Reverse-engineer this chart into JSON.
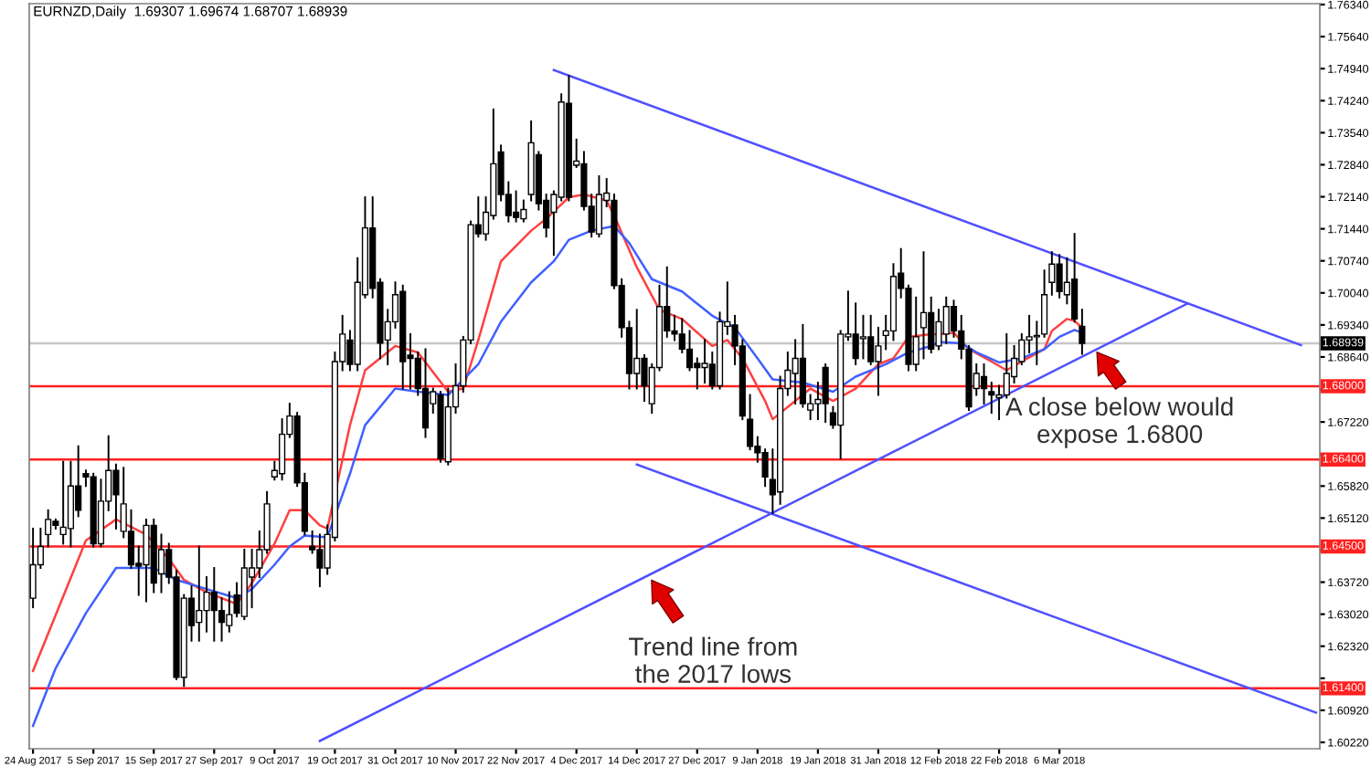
{
  "chart_data": {
    "type": "candlestick",
    "title": "EURNZD,Daily  1.69307 1.69674 1.68707 1.68939",
    "categories": [
      "24 Aug 2017",
      null,
      null,
      null,
      null,
      null,
      null,
      null,
      "5 Sep 2017",
      null,
      null,
      null,
      null,
      null,
      null,
      null,
      "15 Sep 2017",
      null,
      null,
      null,
      null,
      null,
      null,
      null,
      "27 Sep 2017",
      null,
      null,
      null,
      null,
      null,
      null,
      null,
      "9 Oct 2017",
      null,
      null,
      null,
      null,
      null,
      null,
      null,
      "19 Oct 2017",
      null,
      null,
      null,
      null,
      null,
      null,
      null,
      "31 Oct 2017",
      null,
      null,
      null,
      null,
      null,
      null,
      null,
      "10 Nov 2017",
      null,
      null,
      null,
      null,
      null,
      null,
      null,
      "22 Nov 2017",
      null,
      null,
      null,
      null,
      null,
      null,
      null,
      "4 Dec 2017",
      null,
      null,
      null,
      null,
      null,
      null,
      null,
      "14 Dec 2017",
      null,
      null,
      null,
      null,
      null,
      null,
      null,
      "27 Dec 2017",
      null,
      null,
      null,
      null,
      null,
      null,
      null,
      "9 Jan 2018",
      null,
      null,
      null,
      null,
      null,
      null,
      null,
      "19 Jan 2018",
      null,
      null,
      null,
      null,
      null,
      null,
      null,
      "31 Jan 2018",
      null,
      null,
      null,
      null,
      null,
      null,
      null,
      "12 Feb 2018",
      null,
      null,
      null,
      null,
      null,
      null,
      null,
      "22 Feb 2018",
      null,
      null,
      null,
      null,
      null,
      null,
      null,
      "6 Mar 2018",
      null,
      null,
      null,
      null,
      null,
      null,
      null,
      null,
      null,
      null,
      null,
      null,
      null,
      null,
      null,
      null,
      null,
      null,
      null,
      null,
      null,
      null,
      null,
      null,
      null,
      null,
      null,
      null,
      null,
      null,
      null,
      null,
      null,
      null
    ],
    "ohlc": [
      [
        1.6337,
        1.6489,
        1.6317,
        1.641
      ],
      [
        1.641,
        1.6489,
        1.6403,
        1.645
      ],
      [
        1.6476,
        1.6529,
        1.645,
        1.6509
      ],
      [
        1.6505,
        1.6509,
        1.6489,
        1.6496
      ],
      [
        1.6476,
        1.6635,
        1.6456,
        1.6492
      ],
      [
        1.6489,
        1.6635,
        1.645,
        1.6582
      ],
      [
        1.6582,
        1.6669,
        1.6516,
        1.6529
      ],
      [
        1.6609,
        1.6616,
        1.6582,
        1.6602
      ],
      [
        1.6602,
        1.6609,
        1.645,
        1.6456
      ],
      [
        1.6456,
        1.6596,
        1.645,
        1.6549
      ],
      [
        1.6549,
        1.6691,
        1.6529,
        1.6616
      ],
      [
        1.6616,
        1.6629,
        1.6489,
        1.6563
      ],
      [
        1.6483,
        1.6622,
        1.647,
        1.6543
      ],
      [
        1.6483,
        1.6529,
        1.6403,
        1.641
      ],
      [
        1.6413,
        1.645,
        1.6344,
        1.6407
      ],
      [
        1.641,
        1.6509,
        1.633,
        1.6496
      ],
      [
        1.6496,
        1.6509,
        1.635,
        1.637
      ],
      [
        1.639,
        1.6476,
        1.635,
        1.6443
      ],
      [
        1.6443,
        1.6456,
        1.637,
        1.6383
      ],
      [
        1.6383,
        1.6397,
        1.616,
        1.6164
      ],
      [
        1.6164,
        1.6344,
        1.6145,
        1.6337
      ],
      [
        1.6337,
        1.6363,
        1.6244,
        1.6277
      ],
      [
        1.6284,
        1.645,
        1.6244,
        1.631
      ],
      [
        1.631,
        1.6383,
        1.6264,
        1.635
      ],
      [
        1.635,
        1.6403,
        1.6244,
        1.631
      ],
      [
        1.631,
        1.6337,
        1.6244,
        1.6284
      ],
      [
        1.6277,
        1.635,
        1.6264,
        1.6301
      ],
      [
        1.6344,
        1.637,
        1.6297,
        1.6304
      ],
      [
        1.6297,
        1.6443,
        1.6291,
        1.6403
      ],
      [
        1.6383,
        1.6443,
        1.6317,
        1.6403
      ],
      [
        1.6403,
        1.6483,
        1.6383,
        1.6443
      ],
      [
        1.6443,
        1.6569,
        1.6436,
        1.6543
      ],
      [
        1.6602,
        1.6635,
        1.6596,
        1.6616
      ],
      [
        1.6609,
        1.6728,
        1.6596,
        1.6695
      ],
      [
        1.6695,
        1.6762,
        1.6689,
        1.6735
      ],
      [
        1.6735,
        1.6742,
        1.6582,
        1.6589
      ],
      [
        1.6589,
        1.6609,
        1.6476,
        1.6483
      ],
      [
        1.645,
        1.6483,
        1.6436,
        1.6443
      ],
      [
        1.6443,
        1.6476,
        1.6363,
        1.6403
      ],
      [
        1.6403,
        1.6496,
        1.639,
        1.6476
      ],
      [
        1.647,
        1.6874,
        1.6463,
        1.6854
      ],
      [
        1.6854,
        1.6954,
        1.6835,
        1.6914
      ],
      [
        1.6901,
        1.6921,
        1.6835,
        1.6848
      ],
      [
        1.6848,
        1.708,
        1.6835,
        1.7027
      ],
      [
        1.7,
        1.7213,
        1.6994,
        1.7146
      ],
      [
        1.7146,
        1.7213,
        1.6994,
        1.7014
      ],
      [
        1.7027,
        1.7034,
        1.6861,
        1.6894
      ],
      [
        1.6901,
        1.6967,
        1.6848,
        1.6941
      ],
      [
        1.6941,
        1.7027,
        1.6928,
        1.7
      ],
      [
        1.7007,
        1.702,
        1.6795,
        1.6854
      ],
      [
        1.6868,
        1.6914,
        1.6795,
        1.6861
      ],
      [
        1.6861,
        1.6874,
        1.6781,
        1.6795
      ],
      [
        1.6795,
        1.6881,
        1.6689,
        1.6709
      ],
      [
        1.6762,
        1.6795,
        1.6742,
        1.6788
      ],
      [
        1.6781,
        1.6788,
        1.6635,
        1.6642
      ],
      [
        1.6635,
        1.6795,
        1.6629,
        1.6755
      ],
      [
        1.6755,
        1.6848,
        1.6742,
        1.6801
      ],
      [
        1.6801,
        1.6908,
        1.6788,
        1.6901
      ],
      [
        1.6901,
        1.716,
        1.6894,
        1.7153
      ],
      [
        1.7153,
        1.7213,
        1.7127,
        1.7133
      ],
      [
        1.7133,
        1.7213,
        1.712,
        1.718
      ],
      [
        1.7173,
        1.7405,
        1.7166,
        1.7286
      ],
      [
        1.7312,
        1.7326,
        1.7206,
        1.7219
      ],
      [
        1.7219,
        1.7246,
        1.716,
        1.7173
      ],
      [
        1.718,
        1.7226,
        1.716,
        1.7169
      ],
      [
        1.7166,
        1.7206,
        1.716,
        1.7186
      ],
      [
        1.7219,
        1.7379,
        1.7206,
        1.7332
      ],
      [
        1.7306,
        1.7312,
        1.7186,
        1.7199
      ],
      [
        1.7206,
        1.7219,
        1.7127,
        1.7146
      ],
      [
        1.718,
        1.7226,
        1.7087,
        1.7219
      ],
      [
        1.7213,
        1.7438,
        1.7206,
        1.7421
      ],
      [
        1.7418,
        1.7478,
        1.7206,
        1.7213
      ],
      [
        1.7283,
        1.7339,
        1.7279,
        1.7292
      ],
      [
        1.7286,
        1.7312,
        1.7186,
        1.7193
      ],
      [
        1.7193,
        1.7219,
        1.7127,
        1.7137
      ],
      [
        1.7133,
        1.7259,
        1.7127,
        1.7219
      ],
      [
        1.7206,
        1.7253,
        1.7193,
        1.7222
      ],
      [
        1.7206,
        1.7219,
        1.7014,
        1.702
      ],
      [
        1.702,
        1.7034,
        1.6908,
        1.6928
      ],
      [
        1.6928,
        1.6941,
        1.6795,
        1.6828
      ],
      [
        1.6828,
        1.6967,
        1.6795,
        1.6861
      ],
      [
        1.6861,
        1.6868,
        1.6768,
        1.6801
      ],
      [
        1.6762,
        1.6848,
        1.6742,
        1.6841
      ],
      [
        1.6841,
        1.702,
        1.6835,
        1.6974
      ],
      [
        1.6974,
        1.706,
        1.6908,
        1.6921
      ],
      [
        1.6921,
        1.6954,
        1.6901,
        1.6914
      ],
      [
        1.6914,
        1.6947,
        1.6874,
        1.6881
      ],
      [
        1.6881,
        1.6921,
        1.6835,
        1.6841
      ],
      [
        1.685,
        1.6861,
        1.6795,
        1.6841
      ],
      [
        1.6841,
        1.6901,
        1.6808,
        1.685
      ],
      [
        1.6848,
        1.6874,
        1.6795,
        1.6801
      ],
      [
        1.6801,
        1.6961,
        1.6795,
        1.6941
      ],
      [
        1.6931,
        1.7027,
        1.6914,
        1.6941
      ],
      [
        1.6934,
        1.6954,
        1.6848,
        1.6888
      ],
      [
        1.6888,
        1.6901,
        1.6728,
        1.6735
      ],
      [
        1.6728,
        1.6781,
        1.6662,
        1.6669
      ],
      [
        1.6669,
        1.6689,
        1.6635,
        1.6655
      ],
      [
        1.6655,
        1.6662,
        1.6582,
        1.6602
      ],
      [
        1.6596,
        1.6662,
        1.6523,
        1.6563
      ],
      [
        1.6569,
        1.6821,
        1.6543,
        1.6795
      ],
      [
        1.6795,
        1.6874,
        1.6781,
        1.6835
      ],
      [
        1.6828,
        1.6901,
        1.6762,
        1.6861
      ],
      [
        1.6861,
        1.6934,
        1.6755,
        1.6762
      ],
      [
        1.6748,
        1.6781,
        1.6728,
        1.6762
      ],
      [
        1.6762,
        1.6808,
        1.6728,
        1.6771
      ],
      [
        1.6841,
        1.6848,
        1.6722,
        1.6762
      ],
      [
        1.6742,
        1.6755,
        1.6709,
        1.6715
      ],
      [
        1.6715,
        1.6921,
        1.6642,
        1.6914
      ],
      [
        1.6908,
        1.7007,
        1.6901,
        1.6914
      ],
      [
        1.6914,
        1.6981,
        1.6848,
        1.6861
      ],
      [
        1.6904,
        1.6954,
        1.6861,
        1.6908
      ],
      [
        1.6908,
        1.6954,
        1.6848,
        1.6854
      ],
      [
        1.6854,
        1.6928,
        1.6781,
        1.6888
      ],
      [
        1.6911,
        1.6954,
        1.6881,
        1.6921
      ],
      [
        1.6921,
        1.7067,
        1.6901,
        1.704
      ],
      [
        1.7047,
        1.71,
        1.6994,
        1.7014
      ],
      [
        1.7014,
        1.702,
        1.6835,
        1.6848
      ],
      [
        1.6848,
        1.6994,
        1.6835,
        1.6908
      ],
      [
        1.6928,
        1.7093,
        1.6861,
        1.6961
      ],
      [
        1.6961,
        1.6994,
        1.6874,
        1.6881
      ],
      [
        1.6888,
        1.6967,
        1.6881,
        1.6941
      ],
      [
        1.6914,
        1.6994,
        1.6894,
        1.6974
      ],
      [
        1.6974,
        1.6987,
        1.6908,
        1.6921
      ],
      [
        1.6921,
        1.6954,
        1.6861,
        1.6881
      ],
      [
        1.6881,
        1.6888,
        1.6748,
        1.6755
      ],
      [
        1.6795,
        1.6848,
        1.6781,
        1.6828
      ],
      [
        1.6821,
        1.6848,
        1.6762,
        1.6795
      ],
      [
        1.6788,
        1.6808,
        1.6742,
        1.6781
      ],
      [
        1.6775,
        1.6801,
        1.6728,
        1.6781
      ],
      [
        1.6781,
        1.6914,
        1.6775,
        1.6828
      ],
      [
        1.6821,
        1.6888,
        1.6808,
        1.6861
      ],
      [
        1.6854,
        1.6914,
        1.6848,
        1.6901
      ],
      [
        1.6901,
        1.6954,
        1.6874,
        1.6908
      ],
      [
        1.6908,
        1.6941,
        1.6848,
        1.6911
      ],
      [
        1.6914,
        1.7053,
        1.6908,
        1.7
      ],
      [
        1.7027,
        1.7093,
        1.7,
        1.7067
      ],
      [
        1.7067,
        1.7087,
        1.6994,
        1.7007
      ],
      [
        1.7,
        1.708,
        1.6981,
        1.7027
      ],
      [
        1.7034,
        1.7133,
        1.6941,
        1.6947
      ],
      [
        1.69307,
        1.69674,
        1.68707,
        1.68939
      ],
      null,
      null,
      null,
      null,
      null,
      null,
      null,
      null,
      null,
      null,
      null,
      null,
      null,
      null,
      null,
      null,
      null,
      null,
      null,
      null,
      null,
      null,
      null,
      null,
      null,
      null,
      null,
      null,
      null,
      null,
      null
    ],
    "series": [
      {
        "type": "line",
        "color": "#ff4040",
        "values": [
          1.6178,
          null,
          null,
          null,
          null,
          null,
          null,
          1.6463,
          null,
          null,
          null,
          1.6509,
          null,
          null,
          null,
          1.6476,
          null,
          null,
          1.6423,
          null,
          1.6377,
          null,
          null,
          1.635,
          null,
          null,
          null,
          1.6324,
          null,
          1.637,
          null,
          null,
          1.6456,
          null,
          1.6529,
          null,
          1.6529,
          null,
          1.6496,
          1.6489,
          null,
          null,
          1.6715,
          null,
          1.6835,
          null,
          null,
          null,
          1.6888,
          null,
          null,
          1.6874,
          null,
          null,
          null,
          1.6788,
          null,
          1.6795,
          null,
          1.6901,
          null,
          null,
          1.7073,
          null,
          null,
          null,
          1.714,
          null,
          1.7166,
          null,
          null,
          1.7213,
          null,
          1.7219,
          null,
          null,
          1.7206,
          1.7173,
          null,
          null,
          1.706,
          null,
          null,
          1.6967,
          null,
          null,
          1.6947,
          null,
          null,
          null,
          1.6888,
          null,
          1.6901,
          null,
          1.6861,
          null,
          null,
          1.6768,
          1.6728,
          null,
          null,
          1.6768,
          null,
          1.6795,
          null,
          null,
          1.6768,
          null,
          null,
          1.6795,
          null,
          null,
          1.6848,
          null,
          1.6861,
          null,
          1.6908,
          null,
          null,
          1.6914,
          1.6914,
          null,
          1.6917,
          null,
          1.6881,
          null,
          null,
          1.6854,
          null,
          1.6835,
          null,
          1.6854,
          null,
          null,
          1.6881,
          1.6921,
          null,
          1.6947,
          1.6943,
          1.6928,
          null,
          null,
          null,
          null,
          null,
          null,
          null,
          null,
          null,
          null,
          null,
          null,
          null,
          null,
          null,
          null,
          null,
          null,
          null,
          null,
          null,
          null,
          null,
          null,
          null,
          null,
          null,
          null,
          null,
          null,
          null
        ]
      },
      {
        "type": "line",
        "color": "#4060ff",
        "values": [
          1.6058,
          null,
          null,
          1.6184,
          null,
          null,
          null,
          1.6304,
          null,
          null,
          null,
          1.6403,
          null,
          null,
          1.6403,
          null,
          1.6403,
          null,
          null,
          1.6377,
          null,
          null,
          null,
          1.6357,
          null,
          null,
          null,
          1.6337,
          null,
          1.6357,
          null,
          null,
          1.641,
          null,
          1.645,
          null,
          1.6474,
          null,
          null,
          1.647,
          null,
          null,
          1.6609,
          null,
          1.6715,
          null,
          null,
          null,
          1.6795,
          null,
          null,
          1.6788,
          null,
          null,
          null,
          1.6781,
          null,
          null,
          null,
          1.6848,
          null,
          null,
          1.6941,
          null,
          null,
          null,
          1.7027,
          null,
          null,
          1.7073,
          null,
          1.712,
          null,
          null,
          1.714,
          null,
          null,
          1.715,
          null,
          1.7113,
          null,
          null,
          1.7034,
          null,
          null,
          null,
          1.7007,
          null,
          null,
          null,
          1.6954,
          null,
          null,
          1.6928,
          null,
          null,
          1.6861,
          null,
          1.6815,
          null,
          null,
          null,
          1.6808,
          null,
          null,
          null,
          1.6788,
          null,
          null,
          1.6821,
          null,
          null,
          null,
          1.6848,
          null,
          null,
          1.6874,
          null,
          null,
          1.6888,
          1.6897,
          null,
          null,
          1.6894,
          null,
          1.6874,
          null,
          null,
          1.6852,
          null,
          null,
          1.6861,
          null,
          null,
          1.6881,
          null,
          1.6908,
          null,
          1.6923,
          1.6917,
          null,
          null,
          null,
          null,
          null,
          null,
          null,
          null,
          null,
          null,
          null,
          null,
          null,
          null,
          null,
          null,
          null,
          null,
          null,
          null,
          null,
          null,
          null,
          null,
          null,
          null,
          null,
          null,
          null,
          null,
          null
        ]
      },
      {
        "type": "line",
        "color": "#5050ff",
        "values": [
          null,
          null,
          null,
          null,
          null,
          null,
          null,
          null,
          null,
          null,
          null,
          null,
          null,
          null,
          null,
          null,
          null,
          null,
          null,
          null,
          null,
          null,
          null,
          null,
          null,
          null,
          null,
          null,
          null,
          null,
          null,
          null,
          null,
          null,
          null,
          null,
          null,
          null,
          null,
          null,
          null,
          null,
          null,
          null,
          null,
          null,
          null,
          null,
          null,
          null,
          null,
          null,
          null,
          null,
          null,
          null,
          null,
          null,
          null,
          null,
          null,
          null,
          null,
          null,
          null,
          null,
          null,
          null,
          null,
          1.7491,
          null,
          null,
          null,
          null,
          null,
          null,
          null,
          null,
          null,
          null,
          null,
          null,
          null,
          null,
          null,
          null,
          null,
          null,
          null,
          null,
          null,
          null,
          null,
          null,
          null,
          null,
          null,
          null,
          null,
          null,
          null,
          null,
          null,
          null,
          null,
          null,
          null,
          null,
          null,
          null,
          null,
          null,
          null,
          null,
          null,
          null,
          null,
          null,
          null,
          null,
          null,
          null,
          null,
          null,
          null,
          null,
          null,
          null,
          null,
          null,
          null,
          null,
          null,
          null,
          null,
          null,
          null,
          null,
          null,
          null,
          null,
          null,
          null,
          null,
          null,
          null,
          null,
          null,
          null,
          null,
          null,
          null,
          null,
          null,
          null,
          null,
          null,
          null,
          null,
          null,
          null,
          null,
          null,
          null,
          null,
          null,
          null,
          null,
          1.689,
          null,
          null
        ]
      },
      {
        "type": "line",
        "color": "#5050ff",
        "values": [
          null,
          null,
          null,
          null,
          null,
          null,
          null,
          null,
          null,
          null,
          null,
          null,
          null,
          null,
          null,
          null,
          null,
          null,
          null,
          null,
          null,
          null,
          null,
          null,
          null,
          null,
          null,
          null,
          null,
          null,
          null,
          null,
          null,
          null,
          null,
          null,
          null,
          null,
          1.6025,
          null,
          null,
          null,
          null,
          null,
          null,
          null,
          null,
          null,
          null,
          null,
          null,
          null,
          null,
          null,
          null,
          null,
          null,
          null,
          null,
          null,
          null,
          null,
          null,
          null,
          null,
          null,
          null,
          null,
          null,
          null,
          null,
          null,
          null,
          null,
          null,
          null,
          null,
          null,
          null,
          null,
          null,
          null,
          null,
          null,
          null,
          null,
          null,
          null,
          null,
          null,
          null,
          null,
          null,
          null,
          null,
          null,
          null,
          null,
          null,
          null,
          null,
          null,
          null,
          null,
          null,
          null,
          null,
          null,
          null,
          null,
          null,
          null,
          null,
          null,
          null,
          null,
          null,
          null,
          null,
          null,
          null,
          null,
          null,
          null,
          null,
          null,
          null,
          null,
          null,
          null,
          null,
          null,
          null,
          null,
          null,
          null,
          null,
          null,
          null,
          null,
          null,
          null,
          null,
          null,
          null,
          null,
          null,
          null,
          null,
          null,
          null,
          null,
          null,
          1.6981,
          null,
          null,
          null,
          null,
          null,
          null,
          null,
          null,
          null,
          null,
          null,
          null,
          null,
          null,
          null,
          null,
          null
        ]
      },
      {
        "type": "line",
        "color": "#5050ff",
        "values": [
          null,
          null,
          null,
          null,
          null,
          null,
          null,
          null,
          null,
          null,
          null,
          null,
          null,
          null,
          null,
          null,
          null,
          null,
          null,
          null,
          null,
          null,
          null,
          null,
          null,
          null,
          null,
          null,
          null,
          null,
          null,
          null,
          null,
          null,
          null,
          null,
          null,
          null,
          null,
          null,
          null,
          null,
          null,
          null,
          null,
          null,
          null,
          null,
          null,
          null,
          null,
          null,
          null,
          null,
          null,
          null,
          null,
          null,
          null,
          null,
          null,
          null,
          null,
          null,
          null,
          null,
          null,
          null,
          null,
          null,
          null,
          null,
          null,
          null,
          null,
          null,
          null,
          null,
          null,
          null,
          1.6629,
          null,
          null,
          null,
          null,
          null,
          null,
          null,
          null,
          null,
          null,
          null,
          null,
          null,
          null,
          null,
          null,
          null,
          null,
          null,
          null,
          null,
          null,
          null,
          null,
          null,
          null,
          null,
          null,
          null,
          null,
          null,
          null,
          null,
          null,
          null,
          null,
          null,
          null,
          null,
          null,
          null,
          null,
          null,
          null,
          null,
          null,
          null,
          null,
          null,
          null,
          null,
          null,
          null,
          null,
          null,
          null,
          null,
          null,
          null,
          null,
          null,
          null,
          null,
          null,
          null,
          null,
          null,
          null,
          null,
          null,
          null,
          null,
          null,
          null,
          null,
          null,
          null,
          null,
          null,
          null,
          null,
          null,
          null,
          null,
          null,
          null,
          null,
          null,
          null,
          1.6087
        ]
      }
    ],
    "ref_lines": [
      {
        "axis": "y",
        "value": 1.68939,
        "label": "1.68939",
        "color": "#c8c8c8"
      },
      {
        "axis": "y",
        "value": 1.68,
        "label": "1.68000",
        "color": "#ff2020"
      },
      {
        "axis": "y",
        "value": 1.664,
        "label": "1.66400",
        "color": "#ff2020"
      },
      {
        "axis": "y",
        "value": 1.645,
        "label": "1.64500",
        "color": "#ff2020"
      },
      {
        "axis": "y",
        "value": 1.614,
        "label": "1.61400",
        "color": "#ff2020"
      }
    ],
    "annotations": [
      "A close below would\nexpose 1.6800",
      "Trend line from\nthe 2017 lows"
    ],
    "ylim": [
      1.6008,
      1.7636
    ],
    "yticks": [
      {
        "value": 1.6022,
        "label": "1.60220"
      },
      {
        "value": 1.6092,
        "label": "1.60920"
      },
      {
        "value": 1.6162,
        "label": null
      },
      {
        "value": 1.6232,
        "label": "1.62320"
      },
      {
        "value": 1.6302,
        "label": "1.63020"
      },
      {
        "value": 1.6372,
        "label": "1.63720"
      },
      {
        "value": 1.6442,
        "label": null
      },
      {
        "value": 1.6512,
        "label": "1.65120"
      },
      {
        "value": 1.6582,
        "label": "1.65820"
      },
      {
        "value": 1.6652,
        "label": null
      },
      {
        "value": 1.6722,
        "label": "1.67220"
      },
      {
        "value": 1.6792,
        "label": null
      },
      {
        "value": 1.6864,
        "label": "1.68640"
      },
      {
        "value": 1.6934,
        "label": "1.69340"
      },
      {
        "value": 1.7004,
        "label": "1.70040"
      },
      {
        "value": 1.7074,
        "label": "1.70740"
      },
      {
        "value": 1.7144,
        "label": "1.71440"
      },
      {
        "value": 1.7214,
        "label": "1.72140"
      },
      {
        "value": 1.7284,
        "label": "1.72840"
      },
      {
        "value": 1.7354,
        "label": "1.73540"
      },
      {
        "value": 1.7424,
        "label": "1.74240"
      },
      {
        "value": 1.7494,
        "label": "1.74940"
      },
      {
        "value": 1.7564,
        "label": "1.75640"
      },
      {
        "value": 1.7634,
        "label": "1.76340"
      }
    ],
    "grid": false
  }
}
